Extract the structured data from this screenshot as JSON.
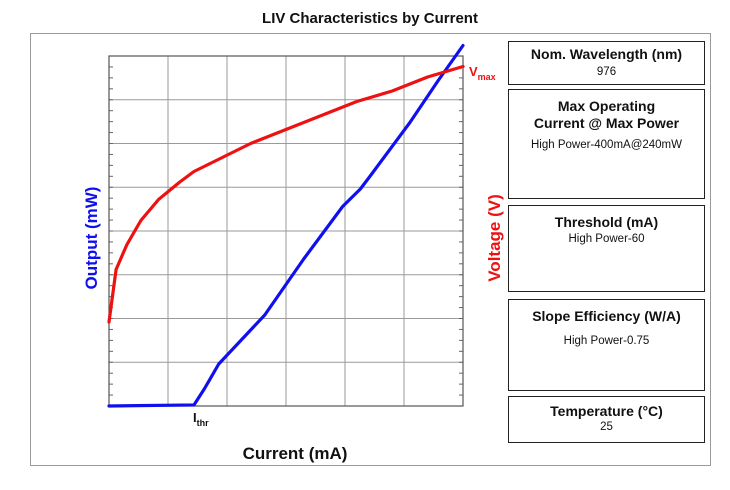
{
  "chart_data": {
    "type": "line",
    "title": "LIV Characteristics by Current",
    "xlabel": "Current (mA)",
    "ylabel_left": "Output (mW)",
    "ylabel_right": "Voltage (V)",
    "grid": true,
    "x_ticks_shown": false,
    "y_ticks_shown": false,
    "annotations": [
      {
        "main": "I",
        "sub": "thr",
        "color": "#111111",
        "anchor": "threshold"
      },
      {
        "main": "V",
        "sub": "max",
        "color": "#ee1111",
        "anchor": "voltage-end"
      }
    ],
    "series": [
      {
        "color": "#1010ee",
        "axis": "left",
        "x": [
          0,
          0.24,
          0.27,
          0.31,
          0.44,
          0.55,
          0.66,
          0.71,
          0.74,
          0.85,
          0.93,
          1.0
        ],
        "y": [
          0,
          0.003,
          0.05,
          0.12,
          0.26,
          0.42,
          0.57,
          0.62,
          0.66,
          0.81,
          0.93,
          1.03
        ]
      },
      {
        "color": "#ee1111",
        "axis": "right",
        "x": [
          0,
          0.02,
          0.05,
          0.09,
          0.14,
          0.2,
          0.24,
          0.3,
          0.4,
          0.5,
          0.6,
          0.7,
          0.8,
          0.9,
          1.0
        ],
        "y": [
          0.24,
          0.39,
          0.46,
          0.53,
          0.59,
          0.64,
          0.67,
          0.7,
          0.75,
          0.79,
          0.83,
          0.87,
          0.9,
          0.94,
          0.97
        ]
      }
    ]
  },
  "panels": [
    {
      "title": "Nom. Wavelength (nm)",
      "value": "976"
    },
    {
      "title": "Max Operating Current @ Max Power",
      "value": "High Power-400mA@240mW"
    },
    {
      "title": "Threshold (mA)",
      "value": "High Power-60"
    },
    {
      "title": "Slope Efficiency (W/A)",
      "value": "High Power-0.75"
    },
    {
      "title": "Temperature (°C)",
      "value": "25"
    }
  ]
}
